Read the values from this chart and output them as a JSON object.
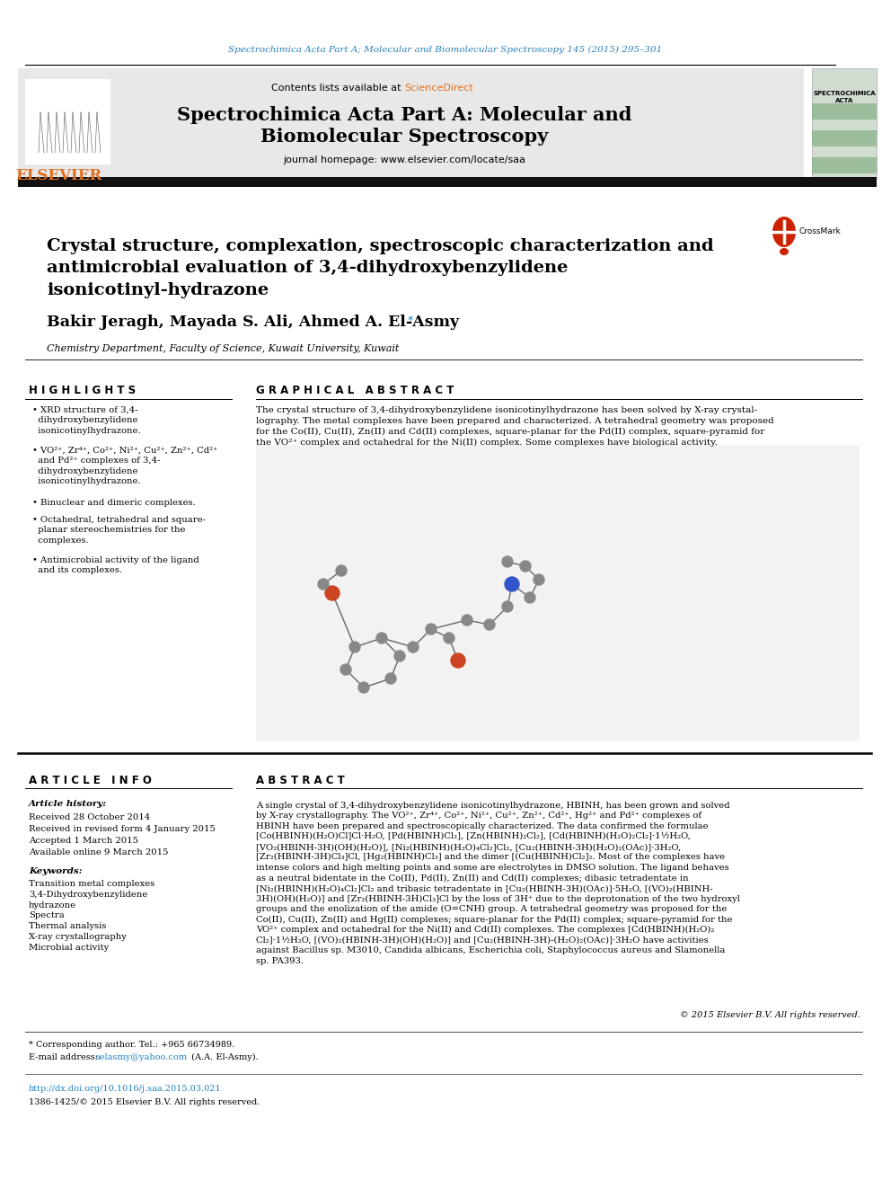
{
  "page_bg": "#ffffff",
  "header_journal_ref": "Spectrochimica Acta Part A; Molecular and Biomolecular Spectroscopy 145 (2015) 295–301",
  "header_ref_color": "#2980b9",
  "journal_title_line1": "Spectrochimica Acta Part A: Molecular and",
  "journal_title_line2": "Biomolecular Spectroscopy",
  "journal_homepage": "journal homepage: www.elsevier.com/locate/saa",
  "contents_available": "Contents lists available at ",
  "science_direct": "ScienceDirect",
  "science_direct_color": "#e07020",
  "elsevier_color": "#e07020",
  "header_bg": "#e8e8e8",
  "black_bar_color": "#111111",
  "article_title": "Crystal structure, complexation, spectroscopic characterization and\nantimicrobial evaluation of 3,4-dihydroxybenzylidene\nisonicotinyl-hydrazone",
  "authors": "Bakir Jeragh, Mayada S. Ali, Ahmed A. El-Asmy",
  "affiliation": "Chemistry Department, Faculty of Science, Kuwait University, Kuwait",
  "highlights_title": "H I G H L I G H T S",
  "highlights": [
    "XRD structure of 3,4-\n  dihydroxybenzylidene\n  isonicotinylhydrazone.",
    "VO²⁺, Zr⁴⁺, Co²⁺, Ni²⁺, Cu²⁺, Zn²⁺, Cd²⁺\n  and Pd²⁺ complexes of 3,4-\n  dihydroxybenzylidene\n  isonicotinylhydrazone.",
    "Binuclear and dimeric complexes.",
    "Octahedral, tetrahedral and square-\n  planar stereochemistries for the\n  complexes.",
    "Antimicrobial activity of the ligand\n  and its complexes."
  ],
  "graphical_abstract_title": "G R A P H I C A L   A B S T R A C T",
  "graphical_abstract_text": "The crystal structure of 3,4-dihydroxybenzylidene isonicotinylhydrazone has been solved by X-ray crystal-\nlography. The metal complexes have been prepared and characterized. A tetrahedral geometry was proposed\nfor the Co(II), Cu(II), Zn(II) and Cd(II) complexes, square-planar for the Pd(II) complex, square-pyramid for\nthe VO²⁺ complex and octahedral for the Ni(II) complex. Some complexes have biological activity.",
  "article_info_title": "A R T I C L E   I N F O",
  "article_history_title": "Article history:",
  "received": "Received 28 October 2014",
  "revised": "Received in revised form 4 January 2015",
  "accepted": "Accepted 1 March 2015",
  "available": "Available online 9 March 2015",
  "keywords_title": "Keywords:",
  "keywords": "Transition metal complexes\n3,4-Dihydroxybenzylidene\nhydrazone\nSpectra\nThermal analysis\nX-ray crystallography\nMicrobial activity",
  "abstract_title": "A B S T R A C T",
  "abstract_text": "A single crystal of 3,4-dihydroxybenzylidene isonicotinylhydrazone, HBINH, has been grown and solved\nby X-ray crystallography. The VO²⁺, Zr⁴⁺, Co²⁺, Ni²⁺, Cu²⁺, Zn²⁺, Cd²⁺, Hg²⁺ and Pd²⁺ complexes of\nHBINH have been prepared and spectroscopically characterized. The data confirmed the formulae\n[Co(HBINH)(H₂O)Cl]Cl·H₂O, [Pd(HBINH)Cl₂], [Zn(HBINH)₂Cl₂], [Cd(HBINH)(H₂O)₂Cl₂]·1½H₂O,\n[VO₂(HBINH-3H)(OH)(H₂O)], [Ni₂(HBINH)(H₂O)₄Cl₂]Cl₂, [Cu₂(HBINH-3H)(H₂O)₂(OAc)]·3H₂O,\n[Zr₂(HBINH-3H)Cl₃]Cl, [Hg₂(HBINH)Cl₃] and the dimer [(Cu(HBINH)Cl₂]₂. Most of the complexes have\nintense colors and high melting points and some are electrolytes in DMSO solution. The ligand behaves\nas a neutral bidentate in the Co(II), Pd(II), Zn(II) and Cd(II) complexes; dibasic tetradentate in\n[Ni₂(HBINH)(H₂O)₄Cl₂]Cl₂ and tribasic tetradentate in [Cu₂(HBINH-3H)(OAc)]·5H₂O, [(VO)₂(HBINH-\n3H)(OH)(H₂O)] and [Zr₂(HBINH-3H)Cl₃]Cl by the loss of 3H⁺ due to the deprotonation of the two hydroxyl\ngroups and the enolization of the amide (O=CNH) group. A tetrahedral geometry was proposed for the\nCo(II), Cu(II), Zn(II) and Hg(II) complexes; square-planar for the Pd(II) complex; square-pyramid for the\nVO²⁺ complex and octahedral for the Ni(II) and Cd(II) complexes. The complexes [Cd(HBINH)(H₂O)₂\nCl₂]·1½H₂O, [(VO)₂(HBINH-3H)(OH)(H₂O)] and [Cu₂(HBINH-3H)-(H₂O)₂(OAc)]·3H₂O have activities\nagainst Bacillus sp. M3010, Candida albicans, Escherichia coli, Staphylococcus aureus and Slamonella\nsp. PA393.",
  "copyright": "© 2015 Elsevier B.V. All rights reserved.",
  "footnote_corresponding": "* Corresponding author. Tel.: +965 66734989.",
  "footnote_email_label": "E-mail address: ",
  "footnote_email": "aelasmy@yahoo.com",
  "footnote_email_name": " (A.A. El-Asmy).",
  "footnote_doi": "http://dx.doi.org/10.1016/j.saa.2015.03.021",
  "footnote_issn": "1386-1425/© 2015 Elsevier B.V. All rights reserved."
}
